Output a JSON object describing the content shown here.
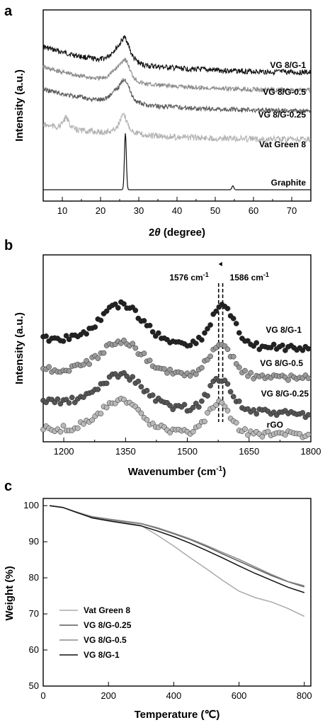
{
  "chart_data": [
    {
      "panel": "a",
      "type": "line",
      "xlabel": "2θ (degree)",
      "xlabel_main": "2",
      "xlabel_theta": "θ",
      "xlabel_rest": " (degree)",
      "ylabel": "Intensity (a.u.)",
      "xlim": [
        5,
        75
      ],
      "xticks": [
        10,
        20,
        30,
        40,
        50,
        60,
        70
      ],
      "series": [
        {
          "name": "VG 8/G-1",
          "color": "#111111",
          "peaks": [
            {
              "x": 26.5,
              "h": 0.35
            }
          ],
          "hump": {
            "x": 25.5,
            "h": 0.6
          },
          "noise": 0.35
        },
        {
          "name": "VG 8/G-0.5",
          "color": "#8a8a8a",
          "peaks": [
            {
              "x": 26.5,
              "h": 0.3
            }
          ],
          "hump": {
            "x": 25.5,
            "h": 0.55
          },
          "noise": 0.3
        },
        {
          "name": "VG 8/G-0.25",
          "color": "#5a5a5a",
          "peaks": [
            {
              "x": 26.5,
              "h": 0.35
            }
          ],
          "hump": {
            "x": 25.5,
            "h": 0.55
          },
          "noise": 0.3
        },
        {
          "name": "Vat Green 8",
          "color": "#b4b4b4",
          "peaks": [
            {
              "x": 11,
              "h": 0.35
            },
            {
              "x": 26,
              "h": 0.4
            }
          ],
          "hump": {
            "x": 26,
            "h": 0.25
          },
          "noise": 0.4
        },
        {
          "name": "Graphite",
          "color": "#111111",
          "peaks": [
            {
              "x": 26.5,
              "h": 5.0
            },
            {
              "x": 54.6,
              "h": 0.35
            }
          ],
          "hump": {
            "x": 26,
            "h": 0
          },
          "noise": 0.0
        }
      ]
    },
    {
      "panel": "b",
      "type": "scatter",
      "xlabel": "Wavenumber (cm⁻¹)",
      "xlabel_main": "Wavenumber (cm",
      "xlabel_sup": "-1",
      "xlabel_end": ")",
      "ylabel": "Intensity (a.u.)",
      "xlim": [
        1150,
        1800
      ],
      "xticks": [
        1200,
        1350,
        1500,
        1650,
        1800
      ],
      "annotations": [
        {
          "text": "1576 cm",
          "sup": "-1",
          "x": 1576
        },
        {
          "text": "1586 cm",
          "sup": "-1",
          "x": 1586
        }
      ],
      "series": [
        {
          "name": "VG 8/G-1",
          "color": "#222222",
          "D": {
            "x": 1340,
            "h": 1.0
          },
          "G": {
            "x": 1586,
            "h": 1.1
          }
        },
        {
          "name": "VG 8/G-0.5",
          "color": "#999999",
          "D": {
            "x": 1340,
            "h": 0.9
          },
          "G": {
            "x": 1580,
            "h": 0.95
          }
        },
        {
          "name": "VG 8/G-0.25",
          "color": "#555555",
          "D": {
            "x": 1340,
            "h": 0.9
          },
          "G": {
            "x": 1580,
            "h": 0.95
          }
        },
        {
          "name": "rGO",
          "color": "#b8b8b8",
          "D": {
            "x": 1335,
            "h": 1.0
          },
          "G": {
            "x": 1576,
            "h": 1.0
          }
        }
      ]
    },
    {
      "panel": "c",
      "type": "line",
      "xlabel": "Temperature (℃)",
      "ylabel": "Weight (%)",
      "xlim": [
        0,
        820
      ],
      "ylim": [
        50,
        102
      ],
      "xticks": [
        0,
        200,
        400,
        600,
        800
      ],
      "yticks": [
        50,
        60,
        70,
        80,
        90,
        100
      ],
      "legend_position": "bottom-left",
      "series": [
        {
          "name": "Vat Green 8",
          "color": "#aaaaaa",
          "x": [
            20,
            60,
            100,
            150,
            200,
            250,
            300,
            350,
            400,
            450,
            500,
            550,
            600,
            650,
            700,
            750,
            800
          ],
          "y": [
            100,
            99.5,
            98.3,
            96.8,
            96.0,
            95.3,
            94.5,
            91.8,
            88.8,
            85.6,
            82.5,
            79.3,
            76.3,
            74.5,
            73.3,
            71.5,
            69.3
          ]
        },
        {
          "name": "VG 8/G-0.25",
          "color": "#5a5a5a",
          "x": [
            20,
            60,
            100,
            150,
            200,
            250,
            300,
            350,
            400,
            450,
            500,
            550,
            600,
            650,
            700,
            750,
            800
          ],
          "y": [
            100,
            99.5,
            98.3,
            96.9,
            96.2,
            95.6,
            95.0,
            93.7,
            92.2,
            90.6,
            88.7,
            86.6,
            84.6,
            82.6,
            80.6,
            78.9,
            77.5
          ]
        },
        {
          "name": "VG 8/G-0.5",
          "color": "#8c8c8c",
          "x": [
            20,
            60,
            100,
            150,
            200,
            250,
            300,
            350,
            400,
            450,
            500,
            550,
            600,
            650,
            700,
            750,
            800
          ],
          "y": [
            100,
            99.5,
            98.3,
            97.0,
            96.3,
            95.7,
            95.1,
            93.9,
            92.4,
            90.8,
            89.0,
            87.0,
            85.1,
            83.0,
            80.9,
            79.0,
            77.8
          ]
        },
        {
          "name": "VG 8/G-1",
          "color": "#111111",
          "x": [
            20,
            60,
            100,
            150,
            200,
            250,
            300,
            350,
            400,
            450,
            500,
            550,
            600,
            650,
            700,
            750,
            800
          ],
          "y": [
            100,
            99.5,
            98.2,
            96.6,
            95.8,
            95.1,
            94.4,
            93.0,
            91.4,
            89.6,
            87.6,
            85.5,
            83.3,
            81.2,
            79.3,
            77.4,
            75.9
          ]
        }
      ]
    }
  ]
}
